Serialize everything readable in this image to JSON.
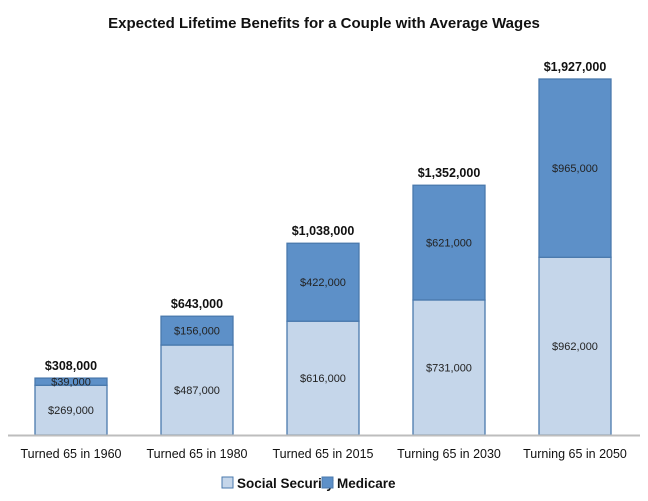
{
  "chart_data": {
    "type": "bar",
    "stacked": true,
    "title": "Expected Lifetime Benefits for a Couple with Average Wages",
    "categories": [
      "Turned 65 in 1960",
      "Turned 65 in 1980",
      "Turned 65 in 2015",
      "Turning 65 in 2030",
      "Turning 65 in 2050"
    ],
    "series": [
      {
        "name": "Social Security",
        "color": "#c5d6ea",
        "values": [
          269000,
          487000,
          616000,
          731000,
          962000
        ],
        "labels": [
          "$269,000",
          "$487,000",
          "$616,000",
          "$731,000",
          "$962,000"
        ]
      },
      {
        "name": "Medicare",
        "color": "#5d90c8",
        "values": [
          39000,
          156000,
          422000,
          621000,
          965000
        ],
        "labels": [
          "$39,000",
          "$156,000",
          "$422,000",
          "$621,000",
          "$965,000"
        ]
      }
    ],
    "totals": [
      308000,
      643000,
      1038000,
      1352000,
      1927000
    ],
    "total_labels": [
      "$308,000",
      "$643,000",
      "$1,038,000",
      "$1,352,000",
      "$1,927,000"
    ],
    "ylim": [
      0,
      1927000
    ],
    "grid": false,
    "legend": "bottom",
    "border_color": "#4a79ad"
  }
}
